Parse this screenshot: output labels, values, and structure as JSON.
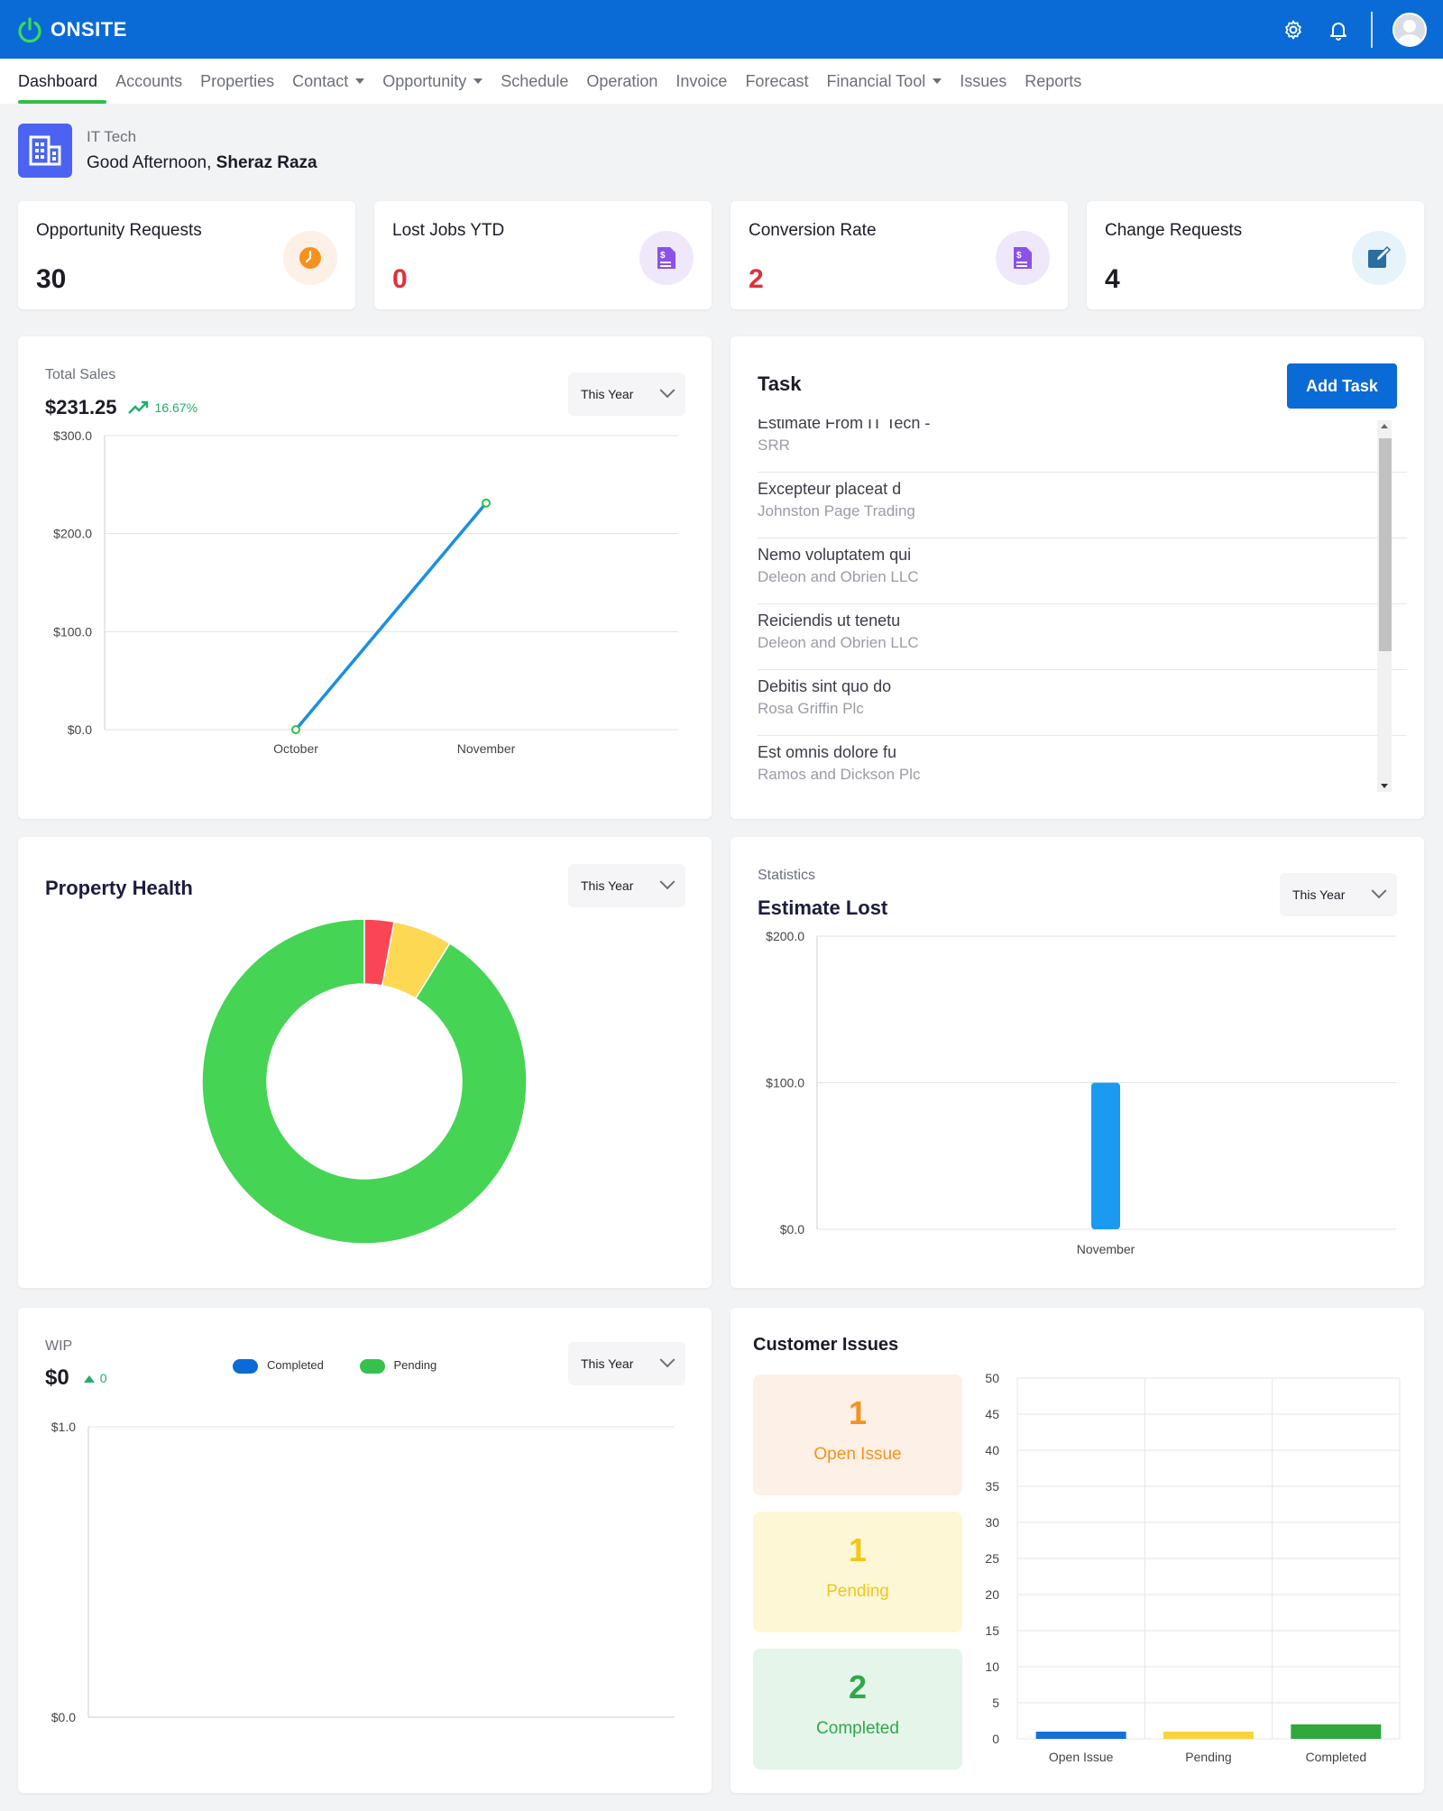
{
  "app": {
    "name": "ONSITE"
  },
  "nav": {
    "items": [
      {
        "label": "Dashboard"
      },
      {
        "label": "Accounts"
      },
      {
        "label": "Properties"
      },
      {
        "label": "Contact"
      },
      {
        "label": "Opportunity"
      },
      {
        "label": "Schedule"
      },
      {
        "label": "Operation"
      },
      {
        "label": "Invoice"
      },
      {
        "label": "Forecast"
      },
      {
        "label": "Financial Tool"
      },
      {
        "label": "Issues"
      },
      {
        "label": "Reports"
      }
    ]
  },
  "greeting": {
    "company": "IT Tech",
    "prefix": "Good Afternoon, ",
    "user": "Sheraz Raza"
  },
  "stats": [
    {
      "title": "Opportunity Requests",
      "value": "30",
      "color": "#1c1c28"
    },
    {
      "title": "Lost Jobs YTD",
      "value": "0",
      "color": "#e0313a"
    },
    {
      "title": "Conversion Rate",
      "value": "2",
      "color": "#e0313a"
    },
    {
      "title": "Change Requests",
      "value": "4",
      "color": "#1c1c28"
    }
  ],
  "total_sales": {
    "label": "Total Sales",
    "amount": "$231.25",
    "change": "16.67%",
    "period": "This Year"
  },
  "task": {
    "title": "Task",
    "add_label": "Add Task",
    "items": [
      {
        "title": "Estimate From IT Tech -",
        "sub": "SRR"
      },
      {
        "title": "Excepteur placeat d",
        "sub": "Johnston Page Trading"
      },
      {
        "title": "Nemo voluptatem qui",
        "sub": "Deleon and Obrien LLC"
      },
      {
        "title": "Reiciendis ut tenetu",
        "sub": "Deleon and Obrien LLC"
      },
      {
        "title": "Debitis sint quo do",
        "sub": "Rosa Griffin Plc"
      },
      {
        "title": "Est omnis dolore fu",
        "sub": "Ramos and Dickson Plc"
      }
    ]
  },
  "property_health": {
    "title": "Property Health",
    "period": "This Year"
  },
  "estimate_lost": {
    "kicker": "Statistics",
    "title": "Estimate Lost",
    "period": "This Year"
  },
  "wip": {
    "label": "WIP",
    "amount": "$0",
    "change": "0",
    "period": "This Year",
    "legend": [
      "Completed",
      "Pending"
    ]
  },
  "customer_issues": {
    "title": "Customer Issues",
    "boxes": [
      {
        "count": "1",
        "label": "Open Issue",
        "bg": "#fdf0e6",
        "fg": "#f5921e"
      },
      {
        "count": "1",
        "label": "Pending",
        "bg": "#fdf7d6",
        "fg": "#f5c518"
      },
      {
        "count": "2",
        "label": "Completed",
        "bg": "#e6f5e9",
        "fg": "#2fa84a"
      }
    ]
  },
  "chart_data": [
    {
      "type": "line",
      "title": "Total Sales",
      "categories": [
        "October",
        "November"
      ],
      "values": [
        0,
        231.25
      ],
      "y_ticks": [
        "$0.0",
        "$100.0",
        "$200.0",
        "$300.0"
      ],
      "ylim": [
        0,
        300
      ],
      "color": "#1a8fe3"
    },
    {
      "type": "pie",
      "title": "Property Health",
      "values": [
        2,
        4,
        62
      ],
      "colors": [
        "#fa4654",
        "#fdd853",
        "#46d455"
      ]
    },
    {
      "type": "bar",
      "title": "Estimate Lost",
      "categories": [
        "November"
      ],
      "values": [
        100
      ],
      "y_ticks": [
        "$0.0",
        "$100.0",
        "$200.0"
      ],
      "ylim": [
        0,
        200
      ],
      "color": "#1a9af0"
    },
    {
      "type": "bar",
      "title": "WIP",
      "series": [
        {
          "name": "Completed",
          "values": []
        },
        {
          "name": "Pending",
          "values": []
        }
      ],
      "y_ticks": [
        "$0.0",
        "$1.0"
      ],
      "ylim": [
        0,
        1
      ],
      "colors": [
        "#0a6bd6",
        "#34c24a"
      ]
    },
    {
      "type": "bar",
      "title": "Customer Issues",
      "categories": [
        "Open Issue",
        "Pending",
        "Completed"
      ],
      "values": [
        1,
        1,
        2
      ],
      "y_ticks": [
        "0",
        "5",
        "10",
        "15",
        "20",
        "25",
        "30",
        "35",
        "40",
        "45",
        "50"
      ],
      "ylim": [
        0,
        50
      ],
      "colors": [
        "#1570d8",
        "#f9d33c",
        "#2fa83c"
      ]
    }
  ]
}
